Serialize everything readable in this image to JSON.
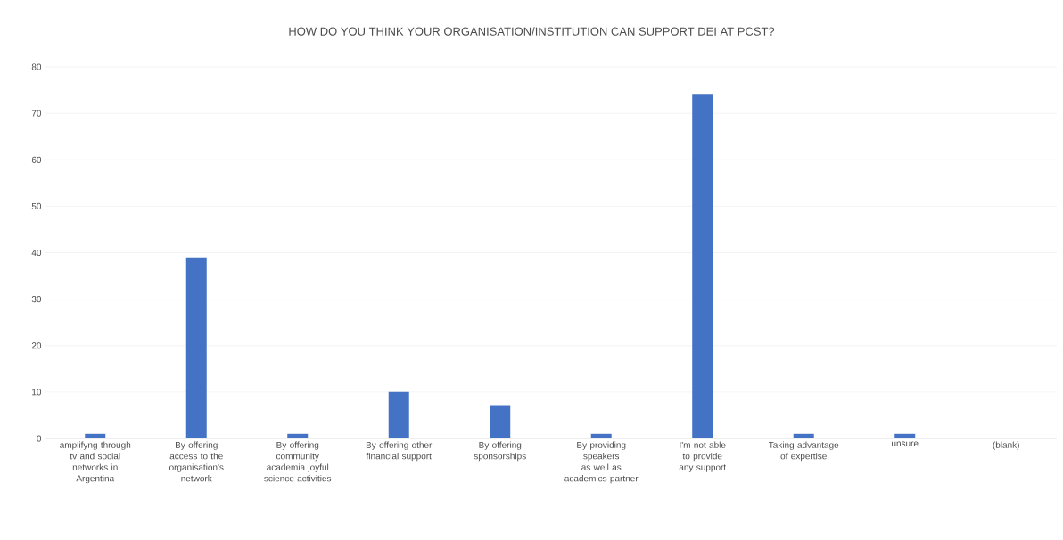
{
  "chart_data": {
    "type": "bar",
    "title": "HOW DO YOU THINK YOUR ORGANISATION/INSTITUTION CAN SUPPORT DEI AT PCST?",
    "categories": [
      "amplifyng through tv and social networks in Argentina",
      "By offering access to the organisation's network",
      "By offering community academia joyful science activities",
      "By offering other financial support",
      "By offering sponsorships",
      "By providing speakers as well as academics partner",
      "I'm not able to provide any support",
      "Taking advantage of expertise",
      "unsure",
      "(blank)"
    ],
    "values": [
      1,
      39,
      1,
      10,
      7,
      1,
      74,
      1,
      1,
      null
    ],
    "color": "#4472c4",
    "ylim": [
      0,
      80
    ],
    "yticks": [
      0,
      10,
      20,
      30,
      40,
      50,
      60,
      70,
      80
    ],
    "grid": "y"
  }
}
